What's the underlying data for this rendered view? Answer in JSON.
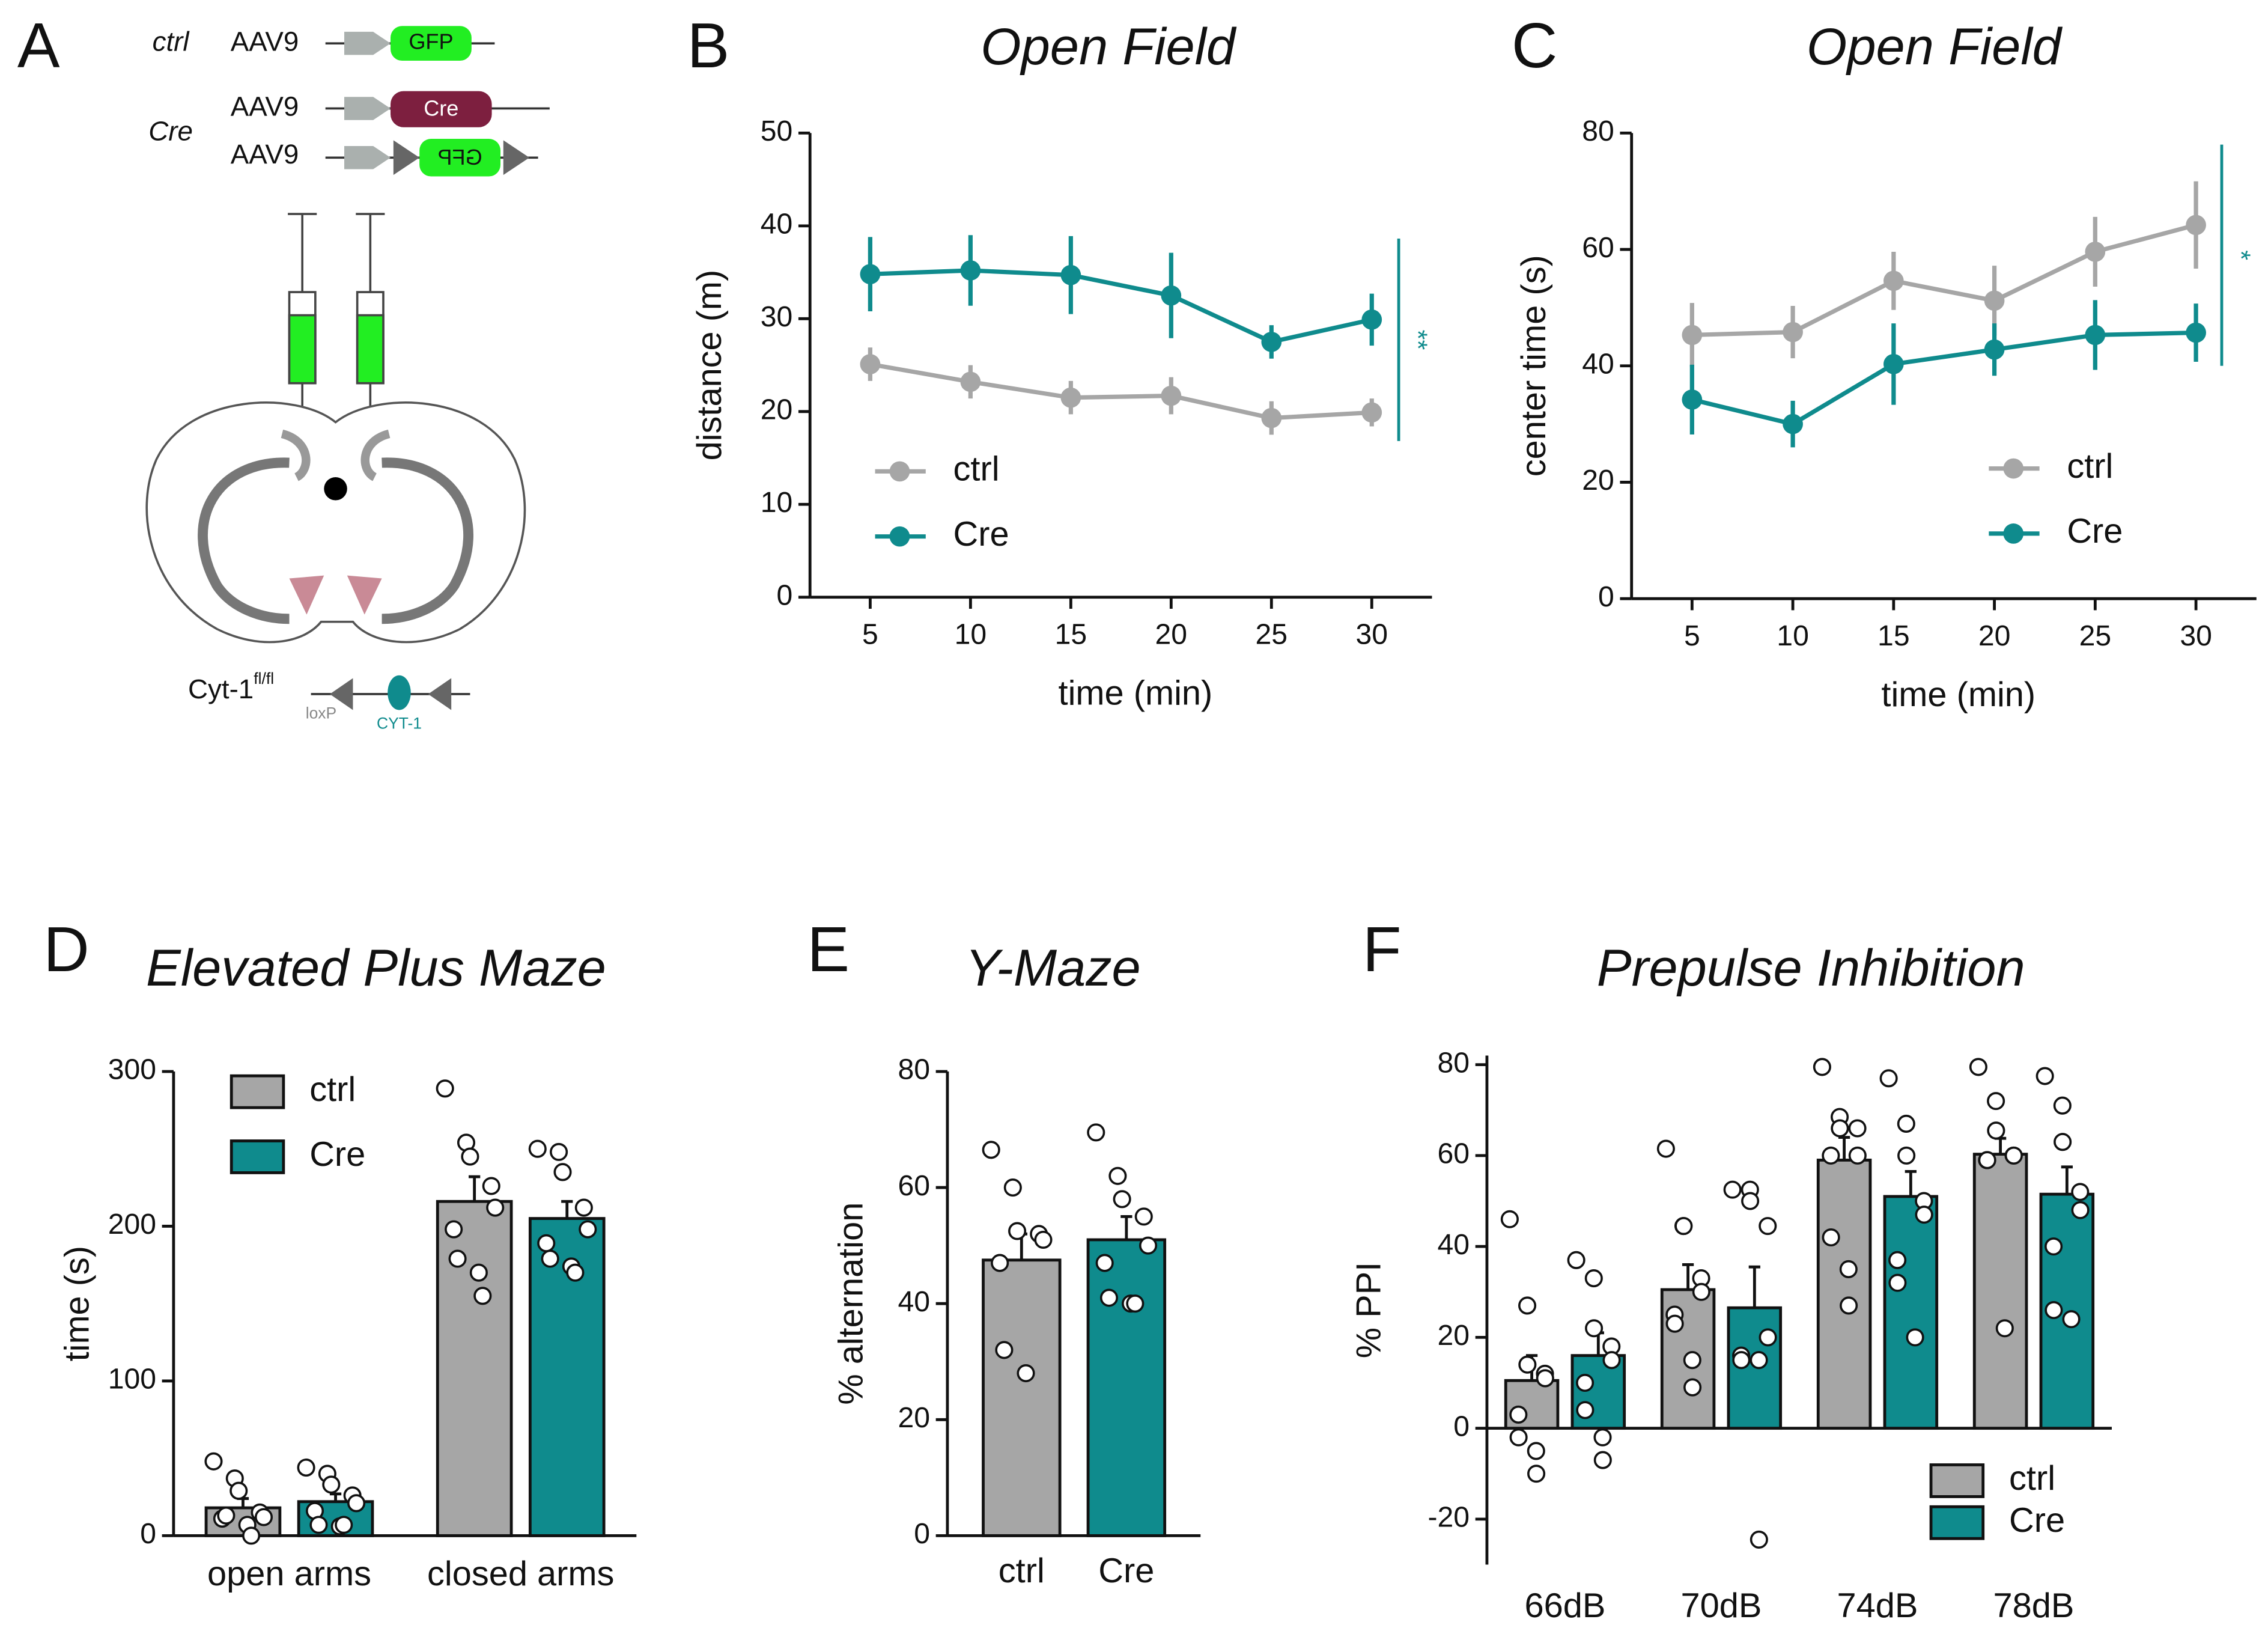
{
  "diagram": {
    "panel": "A",
    "constructs": [
      {
        "group": "ctrl",
        "vector": "AAV9",
        "insert": "GFP"
      },
      {
        "group": "Cre",
        "vector": "AAV9",
        "insert": "Cre"
      },
      {
        "vector": "AAV9",
        "insert": "GFP"
      }
    ],
    "allele": {
      "name": "Cyt-1",
      "superscript": "fl/fl",
      "site": "loxP",
      "gene": "CYT-1"
    }
  },
  "chart_data": [
    {
      "panel": "B",
      "type": "line",
      "title": "Open Field",
      "x_label": "time (min)",
      "y_label": "distance (m)",
      "x": [
        5,
        10,
        15,
        20,
        25,
        30
      ],
      "xlim": [
        2,
        33
      ],
      "xticks": [
        5,
        10,
        15,
        20,
        25,
        30
      ],
      "ylim": [
        0,
        50
      ],
      "yticks": [
        0,
        10,
        20,
        30,
        40,
        50
      ],
      "legend": "lower left",
      "annotation": "**",
      "series": [
        {
          "name": "ctrl",
          "color": "#a6a6a6",
          "values": [
            25.1,
            23.2,
            21.5,
            21.7,
            19.3,
            19.9
          ],
          "errors": [
            1.8,
            1.8,
            1.8,
            2,
            1.8,
            1.5
          ]
        },
        {
          "name": "Cre",
          "color": "#0f8b8d",
          "values": [
            34.8,
            35.2,
            34.7,
            32.5,
            27.5,
            29.9
          ],
          "errors": [
            4,
            3.8,
            4.2,
            4.6,
            1.8,
            2.8
          ]
        }
      ]
    },
    {
      "panel": "C",
      "type": "line",
      "title": "Open Field",
      "x_label": "time (min)",
      "y_label": "center time (s)",
      "x": [
        5,
        10,
        15,
        20,
        25,
        30
      ],
      "xlim": [
        2,
        33
      ],
      "xticks": [
        5,
        10,
        15,
        20,
        25,
        30
      ],
      "ylim": [
        0,
        80
      ],
      "yticks": [
        0,
        20,
        40,
        60,
        80
      ],
      "legend": "lower right",
      "annotation": "*",
      "series": [
        {
          "name": "ctrl",
          "color": "#a6a6a6",
          "values": [
            45.3,
            45.8,
            54.6,
            51.2,
            59.6,
            64.2
          ],
          "errors": [
            5.5,
            4.5,
            5,
            6,
            6,
            7.5
          ]
        },
        {
          "name": "Cre",
          "color": "#0f8b8d",
          "values": [
            34.2,
            30,
            40.3,
            42.8,
            45.3,
            45.7
          ],
          "errors": [
            6,
            4,
            7,
            4.5,
            6,
            5
          ]
        }
      ]
    },
    {
      "panel": "D",
      "type": "bar",
      "title": "Elevated Plus Maze",
      "y_label": "time (s)",
      "categories": [
        "open arms",
        "closed arms"
      ],
      "ylim": [
        0,
        300
      ],
      "yticks": [
        0,
        100,
        200,
        300
      ],
      "legend": "upper left",
      "series": [
        {
          "name": "ctrl",
          "color": "#a6a6a6",
          "values": [
            18,
            216
          ],
          "errors": [
            6,
            16
          ],
          "points": [
            [
              48,
              37,
              29,
              15,
              12,
              11,
              13,
              7,
              0
            ],
            [
              289,
              254,
              245,
              226,
              212,
              198,
              179,
              170,
              155
            ]
          ]
        },
        {
          "name": "Cre",
          "color": "#0f8b8d",
          "values": [
            22,
            205
          ],
          "errors": [
            5,
            11
          ],
          "points": [
            [
              44,
              40,
              33,
              26,
              21,
              16,
              7,
              6,
              7
            ],
            [
              250,
              248,
              235,
              212,
              198,
              189,
              179,
              174,
              170
            ]
          ]
        }
      ]
    },
    {
      "panel": "E",
      "type": "bar",
      "title": "Y-Maze",
      "y_label": "% alternation",
      "categories": [
        "ctrl",
        "Cre"
      ],
      "ylim": [
        0,
        80
      ],
      "yticks": [
        0,
        20,
        40,
        60,
        80
      ],
      "values": [
        47.5,
        51
      ],
      "errors": [
        4.5,
        4
      ],
      "colors": [
        "#a6a6a6",
        "#0f8b8d"
      ],
      "points": [
        [
          66.5,
          60,
          52.5,
          52,
          51,
          47,
          32,
          28
        ],
        [
          69.5,
          62,
          58,
          55,
          50,
          47,
          41,
          40,
          40
        ]
      ]
    },
    {
      "panel": "F",
      "type": "bar",
      "title": "Prepulse Inhibition",
      "y_label": "% PPI",
      "categories": [
        "66dB",
        "70dB",
        "74dB",
        "78dB"
      ],
      "ylim": [
        -30,
        82
      ],
      "yticks": [
        -20,
        0,
        20,
        40,
        60,
        80
      ],
      "legend": "lower right",
      "series": [
        {
          "name": "ctrl",
          "color": "#a6a6a6",
          "values": [
            10.5,
            30.5,
            59,
            60.3
          ],
          "errors": [
            5.5,
            5.5,
            5,
            3.5
          ],
          "points": [
            [
              46,
              27,
              14,
              12,
              11,
              3,
              -2,
              -5,
              -10
            ],
            [
              61.5,
              44.5,
              44.5,
              33,
              30,
              25,
              23,
              15,
              9
            ],
            [
              79.5,
              68.5,
              66,
              66,
              60,
              60,
              42,
              35,
              27
            ],
            [
              79.5,
              72,
              65.5,
              60,
              60,
              59,
              59,
              22
            ]
          ]
        },
        {
          "name": "Cre",
          "color": "#0f8b8d",
          "values": [
            16,
            26.5,
            51,
            51.5
          ],
          "errors": [
            5,
            9,
            5.5,
            6
          ],
          "points": [
            [
              37,
              33,
              22,
              18,
              15,
              10,
              4,
              -2,
              -7
            ],
            [
              52.5,
              52.5,
              50,
              44.5,
              20,
              16,
              15,
              15,
              -24.5
            ],
            [
              77,
              67,
              60,
              50,
              47,
              37,
              32,
              20
            ],
            [
              77.5,
              71,
              63,
              52,
              48,
              40,
              26,
              24
            ]
          ]
        }
      ]
    }
  ]
}
